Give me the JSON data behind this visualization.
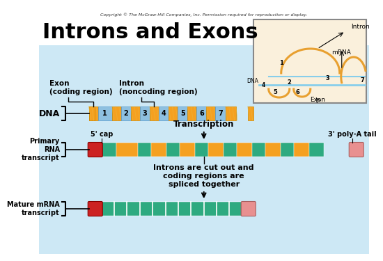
{
  "title": "Introns and Exons",
  "copyright": "Copyright © The McGraw-Hill Companies, Inc. Permission required for reproduction or display.",
  "bg_color": "#cde8f5",
  "title_bg": "#ffffff",
  "colors": {
    "exon_orange": "#F5A020",
    "intron_blue": "#8EC0E0",
    "teal": "#2EAA80",
    "red_cap": "#CC2222",
    "pink_cap": "#E89090",
    "white": "#ffffff",
    "inset_bg": "#FAF0DC",
    "inset_orange": "#E8A030",
    "inset_border": "#999999"
  },
  "dna_label": "DNA",
  "primary_label": "Primary\nRNA\ntranscript",
  "mature_label": "Mature mRNA\ntranscript",
  "transcription_text": "Transcription",
  "splicing_text": "Introns are cut out and\ncoding regions are\nspliced together",
  "five_cap": "5' cap",
  "three_tail": "3' poly-A tail",
  "exon_label": "Exon\n(coding region)",
  "intron_label": "Intron\n(noncoding region)"
}
